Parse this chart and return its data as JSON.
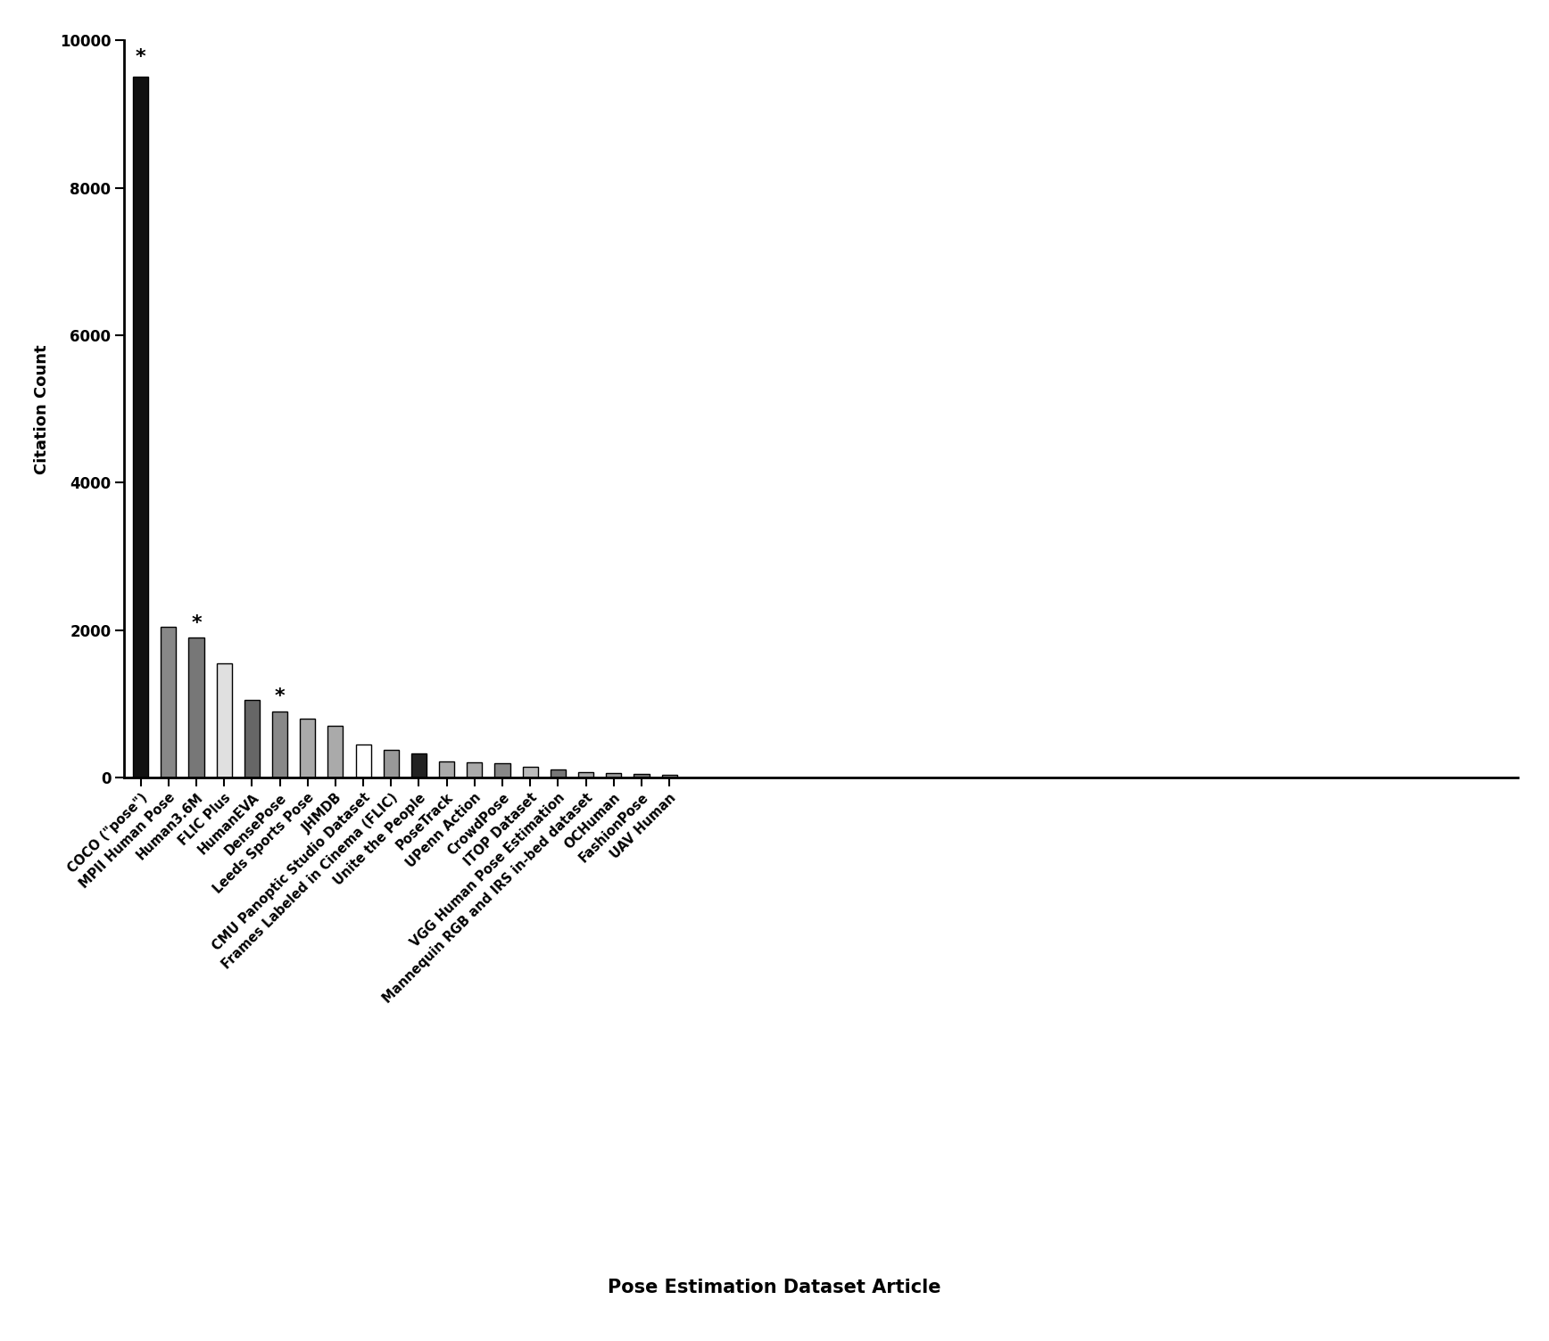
{
  "categories": [
    "COCO (\"pose\")",
    "MPII Human Pose",
    "Human3.6M",
    "FLIC Plus",
    "HumanEVA",
    "DensePose",
    "Leeds Sports Pose",
    "JHMDB",
    "CMU Panoptic Studio Dataset",
    "Frames Labeled in Cinema (FLIC)",
    "Unite the People",
    "PoseTrack",
    "UPenn Action",
    "CrowdPose",
    "ITOP Dataset",
    "VGG Human Pose Estimation",
    "Mannequin RGB and IRS in-bed dataset",
    "OCHuman",
    "FashionPose",
    "UAV Human"
  ],
  "values": [
    9500,
    2050,
    1900,
    1550,
    1050,
    900,
    800,
    700,
    450,
    380,
    330,
    220,
    210,
    200,
    150,
    110,
    80,
    65,
    50,
    45
  ],
  "colors": [
    "#111111",
    "#888888",
    "#777777",
    "#e0e0e0",
    "#666666",
    "#888888",
    "#aaaaaa",
    "#aaaaaa",
    "#ffffff",
    "#999999",
    "#222222",
    "#aaaaaa",
    "#aaaaaa",
    "#888888",
    "#bbbbbb",
    "#777777",
    "#aaaaaa",
    "#999999",
    "#777777",
    "#999999"
  ],
  "star_indices": [
    0,
    2,
    5
  ],
  "ylabel": "Citation Count",
  "xlabel": "Pose Estimation Dataset Article",
  "ylim": [
    0,
    10000
  ],
  "yticks": [
    0,
    2000,
    4000,
    6000,
    8000,
    10000
  ],
  "background_color": "#ffffff"
}
